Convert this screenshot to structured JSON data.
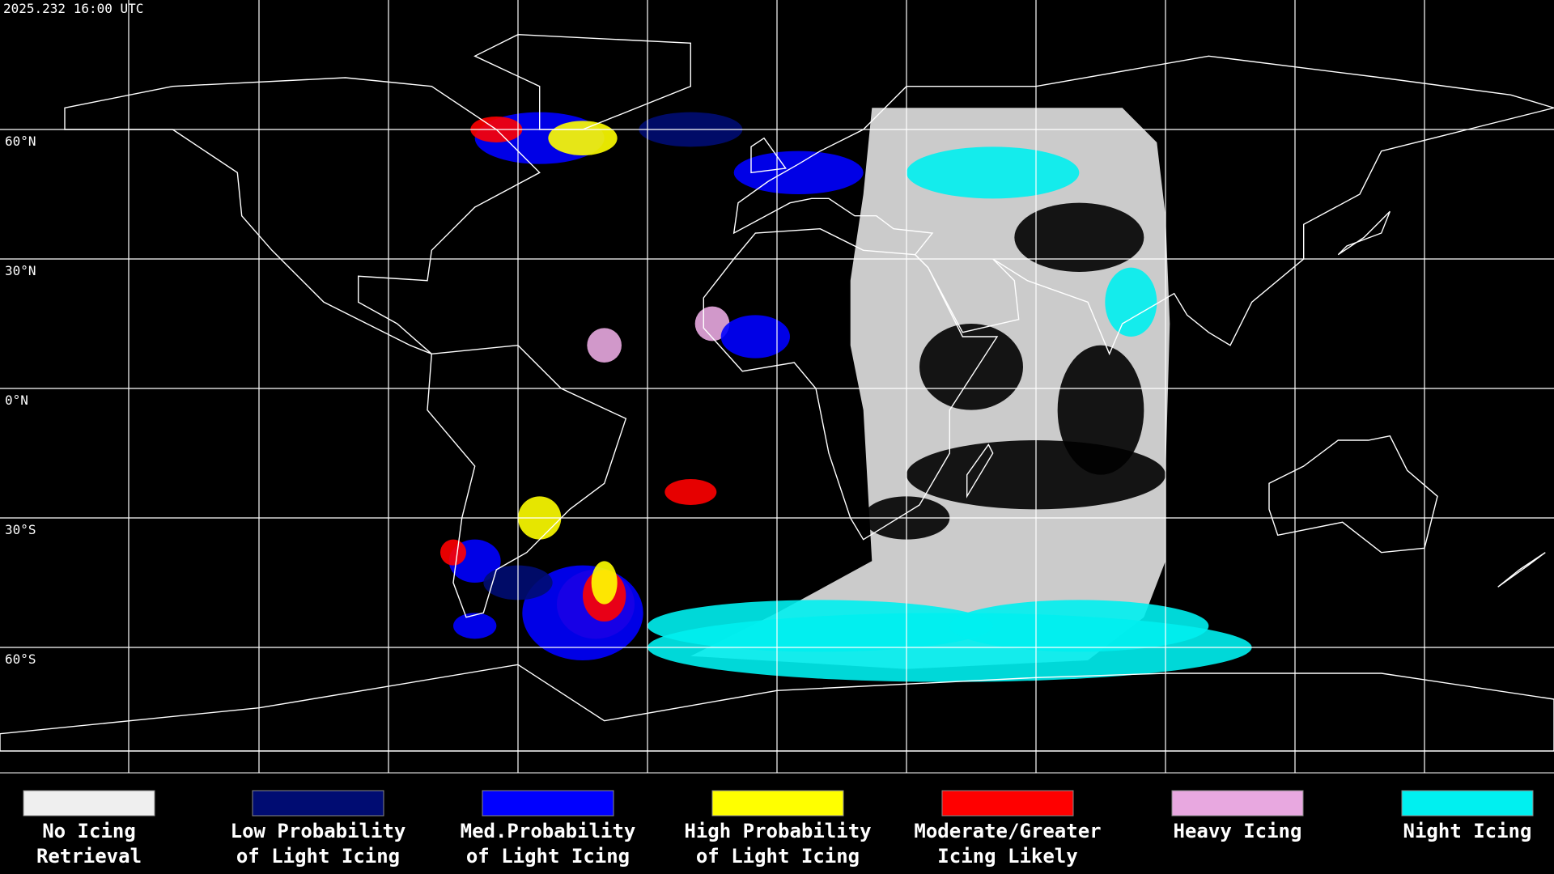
{
  "header": {
    "timestamp": "2025.232 16:00 UTC"
  },
  "map": {
    "latitude_ticks": [
      {
        "value": 60,
        "label": "60°N"
      },
      {
        "value": 30,
        "label": "30°N"
      },
      {
        "value": 0,
        "label": "0°N"
      },
      {
        "value": -30,
        "label": "30°S"
      },
      {
        "value": -60,
        "label": "60°S"
      }
    ]
  },
  "legend": [
    {
      "label": [
        "No Icing",
        "Retrieval"
      ],
      "color": "#efefef"
    },
    {
      "label": [
        "Low Probability",
        "of Light Icing"
      ],
      "color": "#000c72"
    },
    {
      "label": [
        "Med.Probability",
        "of Light Icing"
      ],
      "color": "#0000ff"
    },
    {
      "label": [
        "High Probability",
        "of Light Icing"
      ],
      "color": "#ffff00"
    },
    {
      "label": [
        "Moderate/Greater",
        "Icing Likely"
      ],
      "color": "#ff0000"
    },
    {
      "label": [
        "Heavy Icing"
      ],
      "color": "#e8a8e0"
    },
    {
      "label": [
        "Night Icing"
      ],
      "color": "#00f0f0"
    }
  ]
}
